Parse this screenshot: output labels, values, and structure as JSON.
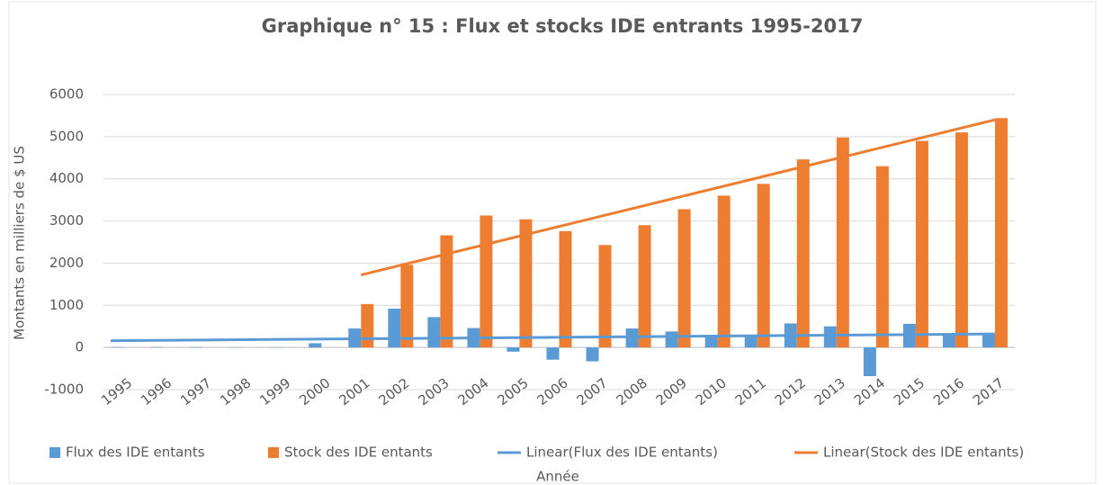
{
  "chart_data": {
    "type": "bar",
    "title": "Graphique n° 15 : Flux et stocks IDE entrants 1995-2017",
    "x_label": "Année",
    "y_label": "Montants en milliers de $ US",
    "categories": [
      "1995",
      "1996",
      "1997",
      "1998",
      "1999",
      "2000",
      "2001",
      "2002",
      "2003",
      "2004",
      "2005",
      "2006",
      "2007",
      "2008",
      "2009",
      "2010",
      "2011",
      "2012",
      "2013",
      "2014",
      "2015",
      "2016",
      "2017"
    ],
    "series": [
      {
        "name": "Flux des IDE entants",
        "color": "#5b9bd5",
        "values": [
          10,
          10,
          10,
          5,
          5,
          100,
          450,
          920,
          720,
          460,
          -100,
          -290,
          -330,
          450,
          380,
          300,
          280,
          570,
          500,
          -680,
          560,
          320,
          330
        ]
      },
      {
        "name": "Stock des IDE entants",
        "color": "#ed7d31",
        "values": [
          null,
          null,
          null,
          null,
          null,
          null,
          1030,
          1960,
          2660,
          3130,
          3040,
          2760,
          2430,
          2900,
          3280,
          3600,
          3880,
          4460,
          4980,
          4300,
          4900,
          5100,
          5440
        ]
      }
    ],
    "trendlines": [
      {
        "name": "Linear(Flux des IDE entants)",
        "color": "#5b9bd5",
        "x": [
          "1995",
          "2017"
        ],
        "values": [
          160,
          320
        ]
      },
      {
        "name": "Linear(Stock des IDE entants)",
        "color": "#ed7d31",
        "x": [
          "2001",
          "2017"
        ],
        "values": [
          1720,
          5400
        ]
      }
    ],
    "ylim": [
      -1000,
      6000
    ],
    "yticks": [
      -1000,
      0,
      1000,
      2000,
      3000,
      4000,
      5000,
      6000
    ],
    "grid": true,
    "legend": "bottom"
  }
}
